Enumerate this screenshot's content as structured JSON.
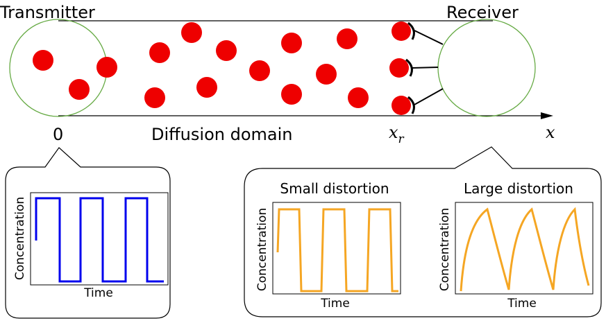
{
  "labels": {
    "transmitter": "Transmitter",
    "receiver": "Receiver",
    "origin": "0",
    "domain": "Diffusion domain",
    "x_r_base": "x",
    "x_r_sub": "r",
    "x_axis": "x"
  },
  "plots": {
    "transmit": {
      "ylabel": "Concentration",
      "xlabel": "Time"
    },
    "small": {
      "title": "Small distortion",
      "ylabel": "Concentration",
      "xlabel": "Time"
    },
    "large": {
      "title": "Large distortion",
      "ylabel": "Concentration",
      "xlabel": "Time"
    }
  },
  "colors": {
    "molecule": "#ee0000",
    "circle": "#66aa44",
    "transmit_signal": "#0000ee",
    "received_signal": "#f5a623",
    "frame": "#000000"
  }
}
